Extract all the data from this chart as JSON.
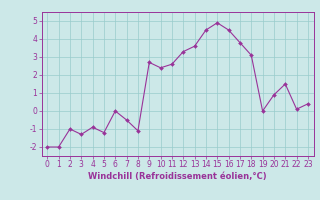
{
  "x": [
    0,
    1,
    2,
    3,
    4,
    5,
    6,
    7,
    8,
    9,
    10,
    11,
    12,
    13,
    14,
    15,
    16,
    17,
    18,
    19,
    20,
    21,
    22,
    23
  ],
  "y": [
    -2.0,
    -2.0,
    -1.0,
    -1.3,
    -0.9,
    -1.2,
    0.0,
    -0.5,
    -1.1,
    2.7,
    2.4,
    2.6,
    3.3,
    3.6,
    4.5,
    4.9,
    4.5,
    3.8,
    3.1,
    0.0,
    0.9,
    1.5,
    0.1,
    0.4
  ],
  "xlim": [
    -0.5,
    23.5
  ],
  "ylim": [
    -2.5,
    5.5
  ],
  "yticks": [
    -2,
    -1,
    0,
    1,
    2,
    3,
    4,
    5
  ],
  "xticks": [
    0,
    1,
    2,
    3,
    4,
    5,
    6,
    7,
    8,
    9,
    10,
    11,
    12,
    13,
    14,
    15,
    16,
    17,
    18,
    19,
    20,
    21,
    22,
    23
  ],
  "line_color": "#993399",
  "marker_color": "#993399",
  "bg_color": "#cce8e8",
  "grid_color": "#99cccc",
  "xlabel": "Windchill (Refroidissement éolien,°C)",
  "xlabel_fontsize": 6.0,
  "tick_fontsize": 5.5,
  "title": ""
}
